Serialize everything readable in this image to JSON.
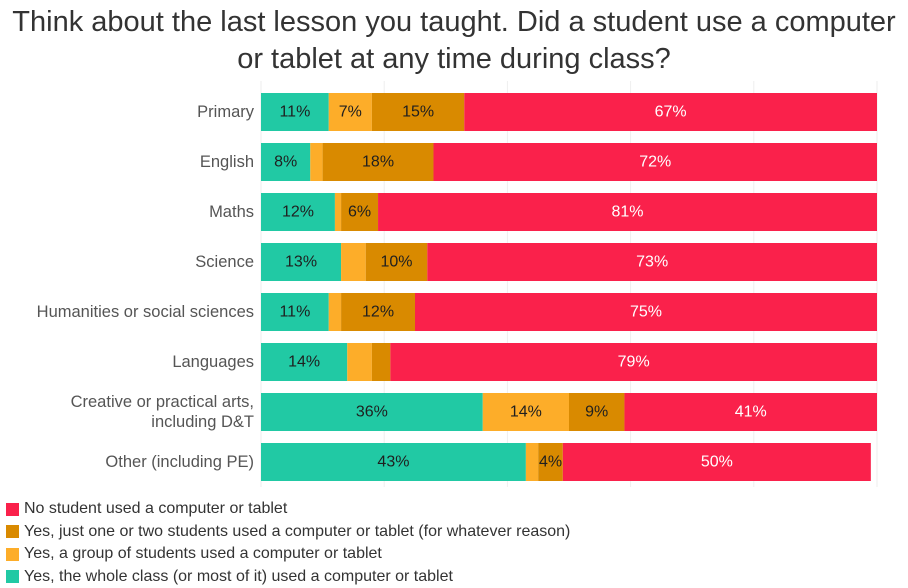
{
  "chart_data": {
    "type": "bar",
    "orientation": "horizontal",
    "stacked": true,
    "title_lines": [
      "Think about the last lesson you taught. Did a student use a computer",
      "or tablet at any time during class?"
    ],
    "categories": [
      [
        "Primary"
      ],
      [
        "English"
      ],
      [
        "Maths"
      ],
      [
        "Science"
      ],
      [
        "Humanities or social sciences"
      ],
      [
        "Languages"
      ],
      [
        "Creative or practical arts,",
        "including D&T"
      ],
      [
        "Other (including PE)"
      ]
    ],
    "series": [
      {
        "name": "Yes, the whole class (or most of it) used a computer or tablet",
        "color": "#21c9a4",
        "values": [
          11,
          8,
          12,
          13,
          11,
          14,
          36,
          43
        ],
        "labels": [
          "11%",
          "8%",
          "12%",
          "13%",
          "11%",
          "14%",
          "36%",
          "43%"
        ]
      },
      {
        "name": "Yes, a group of students used a computer or tablet",
        "color": "#fdad29",
        "values": [
          7,
          2,
          1,
          4,
          2,
          4,
          14,
          2
        ],
        "labels": [
          "7%",
          "",
          "",
          "",
          "",
          "",
          "14%",
          ""
        ]
      },
      {
        "name": "Yes, just one or two students used a computer or tablet (for whatever reason)",
        "color": "#d98a00",
        "values": [
          15,
          18,
          6,
          10,
          12,
          3,
          9,
          4
        ],
        "labels": [
          "15%",
          "18%",
          "6%",
          "10%",
          "12%",
          "",
          "9%",
          "4%"
        ]
      },
      {
        "name": "No student used a computer or tablet",
        "color": "#fa214b",
        "values": [
          67,
          72,
          81,
          73,
          75,
          79,
          41,
          50
        ],
        "labels": [
          "67%",
          "72%",
          "81%",
          "73%",
          "75%",
          "79%",
          "41%",
          "50%"
        ]
      }
    ],
    "label_colors": {
      "dark": "#1f1f1f",
      "light": "#ffffff"
    },
    "xlim": [
      0,
      100
    ],
    "legend_position": "bottom-left",
    "legend_order": [
      3,
      2,
      1,
      0
    ],
    "grid": true
  }
}
